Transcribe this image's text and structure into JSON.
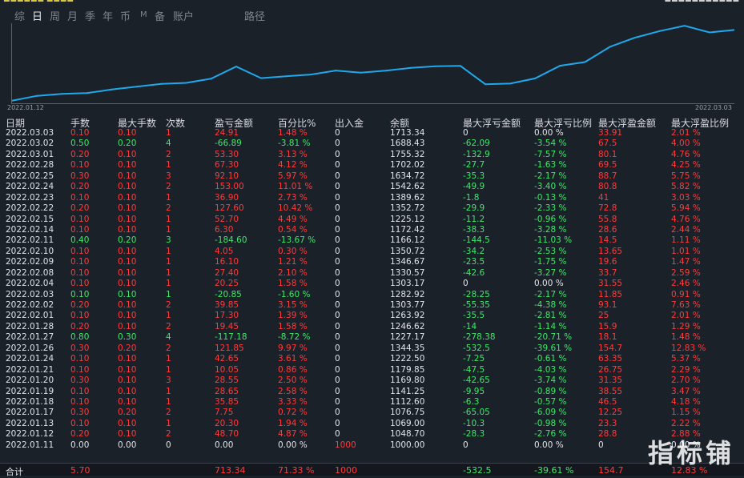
{
  "header": {
    "left_text": "■■■■■■ ■■■■",
    "right_text": "■■■■■■■■■■■"
  },
  "tabs": [
    {
      "label": "综",
      "active": false
    },
    {
      "label": "日",
      "active": true
    },
    {
      "label": "周",
      "active": false
    },
    {
      "label": "月",
      "active": false
    },
    {
      "label": "季",
      "active": false
    },
    {
      "label": "年",
      "active": false
    },
    {
      "label": "币",
      "active": false
    },
    {
      "label": "M",
      "active": false
    },
    {
      "label": "备",
      "active": false
    },
    {
      "label": "账户",
      "active": false
    },
    {
      "label": "路径",
      "active": false
    }
  ],
  "chart_data": {
    "type": "line",
    "x_start_label": "2022.01.12",
    "x_end_label": "2022.03.03",
    "x": [
      "2022.01.11",
      "2022.01.12",
      "2022.01.13",
      "2022.01.17",
      "2022.01.18",
      "2022.01.19",
      "2022.01.20",
      "2022.01.21",
      "2022.01.24",
      "2022.01.26",
      "2022.01.27",
      "2022.01.28",
      "2022.02.01",
      "2022.02.02",
      "2022.02.03",
      "2022.02.04",
      "2022.02.08",
      "2022.02.09",
      "2022.02.10",
      "2022.02.11",
      "2022.02.14",
      "2022.02.15",
      "2022.02.22",
      "2022.02.23",
      "2022.02.24",
      "2022.02.25",
      "2022.02.28",
      "2022.03.01",
      "2022.03.02",
      "2022.03.03"
    ],
    "values": [
      1000.0,
      1048.7,
      1069.0,
      1076.75,
      1112.6,
      1141.25,
      1169.8,
      1179.85,
      1222.5,
      1344.35,
      1227.17,
      1246.62,
      1263.92,
      1303.77,
      1282.92,
      1303.17,
      1330.57,
      1346.67,
      1350.72,
      1166.12,
      1172.42,
      1225.12,
      1352.72,
      1389.62,
      1542.62,
      1634.72,
      1702.02,
      1755.32,
      1688.43,
      1713.34
    ],
    "ylim": [
      990,
      1765
    ],
    "line_color": "#1fa8ec"
  },
  "columns": [
    "日期",
    "手数",
    "最大手数",
    "次数",
    "盈亏金额",
    "百分比%",
    "出入金",
    "余额",
    "最大浮亏金额",
    "最大浮亏比例",
    "最大浮盈金额",
    "最大浮盈比例"
  ],
  "rows": [
    [
      "2022.03.03",
      "0.10",
      "0.10",
      "1",
      "24.91",
      "1.48 %",
      "0",
      "1713.34",
      "0",
      "0.00 %",
      "33.91",
      "2.01 %"
    ],
    [
      "2022.03.02",
      "0.50",
      "0.20",
      "4",
      "-66.89",
      "-3.81 %",
      "0",
      "1688.43",
      "-62.09",
      "-3.54 %",
      "67.5",
      "4.00 %"
    ],
    [
      "2022.03.01",
      "0.20",
      "0.10",
      "2",
      "53.30",
      "3.13 %",
      "0",
      "1755.32",
      "-132.9",
      "-7.57 %",
      "80.1",
      "4.76 %"
    ],
    [
      "2022.02.28",
      "0.10",
      "0.10",
      "1",
      "67.30",
      "4.12 %",
      "0",
      "1702.02",
      "-27.7",
      "-1.63 %",
      "69.5",
      "4.25 %"
    ],
    [
      "2022.02.25",
      "0.30",
      "0.10",
      "3",
      "92.10",
      "5.97 %",
      "0",
      "1634.72",
      "-35.3",
      "-2.17 %",
      "88.7",
      "5.75 %"
    ],
    [
      "2022.02.24",
      "0.20",
      "0.10",
      "2",
      "153.00",
      "11.01 %",
      "0",
      "1542.62",
      "-49.9",
      "-3.40 %",
      "80.8",
      "5.82 %"
    ],
    [
      "2022.02.23",
      "0.10",
      "0.10",
      "1",
      "36.90",
      "2.73 %",
      "0",
      "1389.62",
      "-1.8",
      "-0.13 %",
      "41",
      "3.03 %"
    ],
    [
      "2022.02.22",
      "0.20",
      "0.10",
      "2",
      "127.60",
      "10.42 %",
      "0",
      "1352.72",
      "-29.9",
      "-2.33 %",
      "72.8",
      "5.94 %"
    ],
    [
      "2022.02.15",
      "0.10",
      "0.10",
      "1",
      "52.70",
      "4.49 %",
      "0",
      "1225.12",
      "-11.2",
      "-0.96 %",
      "55.8",
      "4.76 %"
    ],
    [
      "2022.02.14",
      "0.10",
      "0.10",
      "1",
      "6.30",
      "0.54 %",
      "0",
      "1172.42",
      "-38.3",
      "-3.28 %",
      "28.6",
      "2.44 %"
    ],
    [
      "2022.02.11",
      "0.40",
      "0.20",
      "3",
      "-184.60",
      "-13.67 %",
      "0",
      "1166.12",
      "-144.5",
      "-11.03 %",
      "14.5",
      "1.11 %"
    ],
    [
      "2022.02.10",
      "0.10",
      "0.10",
      "1",
      "4.05",
      "0.30 %",
      "0",
      "1350.72",
      "-34.2",
      "-2.53 %",
      "13.65",
      "1.01 %"
    ],
    [
      "2022.02.09",
      "0.10",
      "0.10",
      "1",
      "16.10",
      "1.21 %",
      "0",
      "1346.67",
      "-23.5",
      "-1.75 %",
      "19.6",
      "1.47 %"
    ],
    [
      "2022.02.08",
      "0.10",
      "0.10",
      "1",
      "27.40",
      "2.10 %",
      "0",
      "1330.57",
      "-42.6",
      "-3.27 %",
      "33.7",
      "2.59 %"
    ],
    [
      "2022.02.04",
      "0.10",
      "0.10",
      "1",
      "20.25",
      "1.58 %",
      "0",
      "1303.17",
      "0",
      "0.00 %",
      "31.55",
      "2.46 %"
    ],
    [
      "2022.02.03",
      "0.10",
      "0.10",
      "1",
      "-20.85",
      "-1.60 %",
      "0",
      "1282.92",
      "-28.25",
      "-2.17 %",
      "11.85",
      "0.91 %"
    ],
    [
      "2022.02.02",
      "0.20",
      "0.10",
      "2",
      "39.85",
      "3.15 %",
      "0",
      "1303.77",
      "-55.35",
      "-4.38 %",
      "93.1",
      "7.63 %"
    ],
    [
      "2022.02.01",
      "0.10",
      "0.10",
      "1",
      "17.30",
      "1.39 %",
      "0",
      "1263.92",
      "-35.5",
      "-2.81 %",
      "25",
      "2.01 %"
    ],
    [
      "2022.01.28",
      "0.20",
      "0.10",
      "2",
      "19.45",
      "1.58 %",
      "0",
      "1246.62",
      "-14",
      "-1.14 %",
      "15.9",
      "1.29 %"
    ],
    [
      "2022.01.27",
      "0.80",
      "0.30",
      "4",
      "-117.18",
      "-8.72 %",
      "0",
      "1227.17",
      "-278.38",
      "-20.71 %",
      "18.1",
      "1.48 %"
    ],
    [
      "2022.01.26",
      "0.30",
      "0.20",
      "2",
      "121.85",
      "9.97 %",
      "0",
      "1344.35",
      "-532.5",
      "-39.61 %",
      "154.7",
      "12.83 %"
    ],
    [
      "2022.01.24",
      "0.10",
      "0.10",
      "1",
      "42.65",
      "3.61 %",
      "0",
      "1222.50",
      "-7.25",
      "-0.61 %",
      "63.35",
      "5.37 %"
    ],
    [
      "2022.01.21",
      "0.10",
      "0.10",
      "1",
      "10.05",
      "0.86 %",
      "0",
      "1179.85",
      "-47.5",
      "-4.03 %",
      "26.75",
      "2.29 %"
    ],
    [
      "2022.01.20",
      "0.30",
      "0.10",
      "3",
      "28.55",
      "2.50 %",
      "0",
      "1169.80",
      "-42.65",
      "-3.74 %",
      "31.35",
      "2.70 %"
    ],
    [
      "2022.01.19",
      "0.10",
      "0.10",
      "1",
      "28.65",
      "2.58 %",
      "0",
      "1141.25",
      "-9.95",
      "-0.89 %",
      "38.55",
      "3.47 %"
    ],
    [
      "2022.01.18",
      "0.10",
      "0.10",
      "1",
      "35.85",
      "3.33 %",
      "0",
      "1112.60",
      "-6.3",
      "-0.57 %",
      "46.5",
      "4.18 %"
    ],
    [
      "2022.01.17",
      "0.30",
      "0.20",
      "2",
      "7.75",
      "0.72 %",
      "0",
      "1076.75",
      "-65.05",
      "-6.09 %",
      "12.25",
      "1.15 %"
    ],
    [
      "2022.01.13",
      "0.10",
      "0.10",
      "1",
      "20.30",
      "1.94 %",
      "0",
      "1069.00",
      "-10.3",
      "-0.98 %",
      "23.3",
      "2.22 %"
    ],
    [
      "2022.01.12",
      "0.20",
      "0.10",
      "2",
      "48.70",
      "4.87 %",
      "0",
      "1048.70",
      "-28.3",
      "-2.76 %",
      "28.8",
      "2.88 %"
    ],
    [
      "2022.01.11",
      "0.00",
      "0.00",
      "0",
      "0.00",
      "0.00 %",
      "1000",
      "1000.00",
      "0",
      "0.00 %",
      "0",
      "0.00 %"
    ]
  ],
  "totals": [
    "合计",
    "5.70",
    "",
    "",
    "713.34",
    "71.33 %",
    "1000",
    "",
    "-532.5",
    "-39.61 %",
    "154.7",
    "12.83 %"
  ],
  "watermark": "指标铺"
}
